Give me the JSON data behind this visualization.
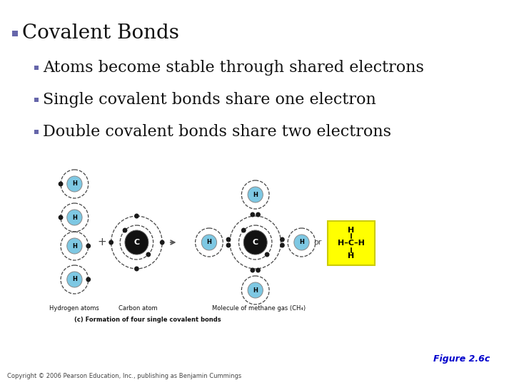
{
  "white_bg": "#ffffff",
  "title_text": "Covalent Bonds",
  "bullet1": "Atoms become stable through shared electrons",
  "bullet2": "Single covalent bonds share one electron",
  "bullet3": "Double covalent bonds share two electrons",
  "title_fontsize": 20,
  "sub_bullet_fontsize": 16,
  "caption1": "Hydrogen atoms",
  "caption2": "Carbon atom",
  "caption3": "Molecule of methane gas (CH₄)",
  "caption4": "(c) Formation of four single covalent bonds",
  "figure_label": "Figure 2.6c",
  "copyright": "Copyright © 2006 Pearson Education, Inc., publishing as Benjamin Cummings",
  "h_color": "#7ec8e3",
  "electron_color": "#1a1a1a",
  "yellow_box_color": "#ffff00",
  "arrow_color": "#555555",
  "figure_color": "#0000cc",
  "bullet_color": "#6666aa",
  "text_color": "#111111",
  "orbit_color": "#444444",
  "caption_color": "#111111"
}
